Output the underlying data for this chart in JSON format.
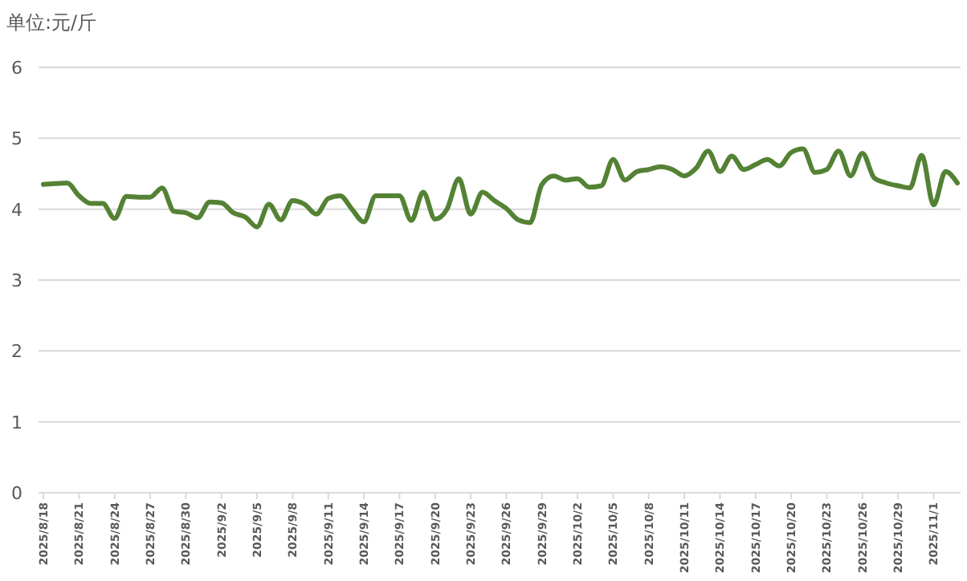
{
  "chart_data": {
    "type": "line",
    "ylabel": "单位:元/斤",
    "categories": [
      "2025/8/18",
      null,
      null,
      "2025/8/21",
      null,
      null,
      "2025/8/24",
      null,
      null,
      "2025/8/27",
      null,
      null,
      "2025/8/30",
      null,
      null,
      "2025/9/2",
      null,
      null,
      "2025/9/5",
      null,
      null,
      "2025/9/8",
      null,
      null,
      "2025/9/11",
      null,
      null,
      "2025/9/14",
      null,
      null,
      "2025/9/17",
      null,
      null,
      "2025/9/20",
      null,
      null,
      "2025/9/23",
      null,
      null,
      "2025/9/26",
      null,
      null,
      "2025/9/29",
      null,
      null,
      "2025/10/2",
      null,
      null,
      "2025/10/5",
      null,
      null,
      "2025/10/8",
      null,
      null,
      "2025/10/11",
      null,
      null,
      "2025/10/14",
      null,
      null,
      "2025/10/17",
      null,
      null,
      "2025/10/20",
      null,
      null,
      "2025/10/23",
      null,
      null,
      "2025/10/26",
      null,
      null,
      "2025/10/29",
      null,
      null,
      "2025/11/1",
      null,
      null
    ],
    "series": [
      {
        "color": "#548235",
        "values": [
          4.35,
          4.36,
          4.37,
          4.19,
          4.08,
          4.08,
          3.87,
          4.18,
          4.17,
          4.17,
          4.3,
          3.97,
          3.95,
          3.88,
          4.1,
          4.09,
          3.95,
          3.89,
          3.75,
          4.07,
          3.85,
          4.12,
          4.07,
          3.93,
          4.15,
          4.19,
          4.0,
          3.82,
          4.19,
          4.19,
          4.19,
          3.84,
          4.24,
          3.86,
          4.0,
          4.43,
          3.93,
          4.24,
          4.12,
          4.01,
          3.85,
          3.81,
          4.35,
          4.47,
          4.41,
          4.43,
          4.31,
          4.33,
          4.7,
          4.41,
          4.53,
          4.56,
          4.6,
          4.56,
          4.47,
          4.58,
          4.82,
          4.53,
          4.75,
          4.56,
          4.63,
          4.7,
          4.61,
          4.8,
          4.85,
          4.52,
          4.56,
          4.82,
          4.47,
          4.79,
          4.44,
          4.37,
          4.33,
          4.3,
          4.76,
          4.06,
          4.53,
          4.37
        ]
      }
    ],
    "ylim": [
      0,
      6
    ],
    "yticks": [
      0,
      1,
      2,
      3,
      4,
      5,
      6
    ],
    "grid": "y",
    "marker": "none",
    "line_style": "solid"
  }
}
